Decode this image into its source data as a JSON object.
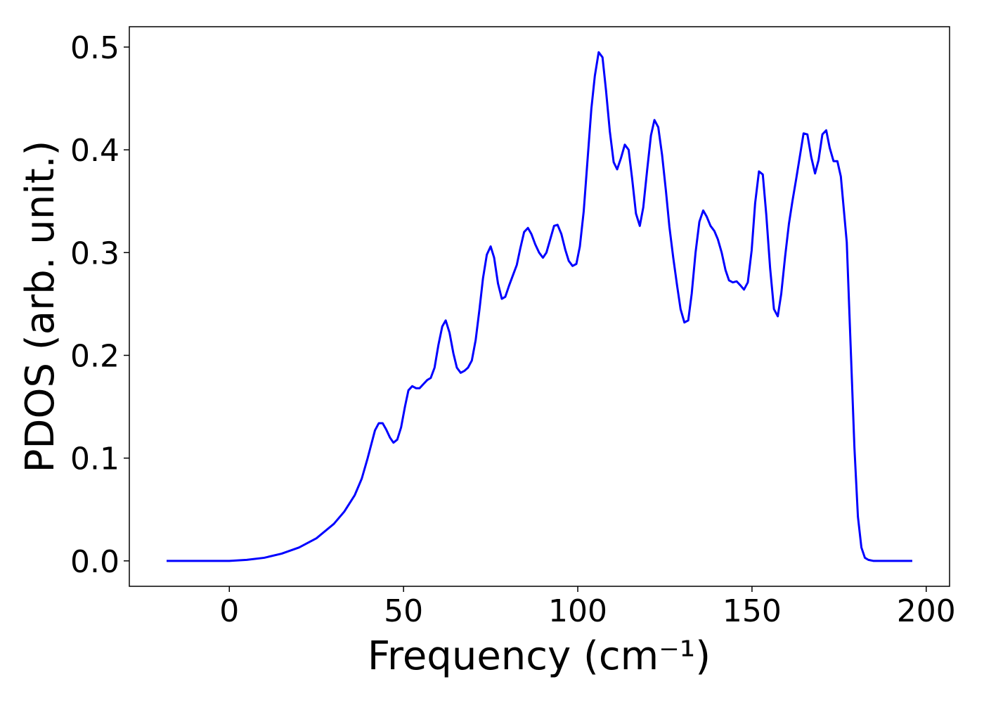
{
  "chart_data": {
    "type": "line",
    "xlabel": "Frequency (cm⁻¹)",
    "ylabel": "PDOS (arb. unit.)",
    "color": "#0000ff",
    "xlim": [
      -28.7,
      206.7
    ],
    "ylim": [
      -0.02475,
      0.5198
    ],
    "xticks": [
      0,
      50,
      100,
      150,
      200
    ],
    "yticks": [
      {
        "value": 0,
        "label": "0.0"
      },
      0.1,
      0.2,
      0.3,
      0.4,
      0.5
    ],
    "x": [
      -18,
      0,
      5,
      10,
      15,
      20,
      25,
      30,
      33,
      36,
      38,
      39.7,
      41.8,
      42.9,
      44.0,
      45.0,
      46.1,
      47.1,
      48.2,
      49.3,
      50.4,
      51.4,
      52.5,
      53.6,
      54.6,
      55.7,
      56.8,
      57.8,
      58.9,
      60.0,
      61.1,
      62.1,
      63.2,
      64.3,
      65.3,
      66.4,
      67.5,
      68.5,
      69.6,
      70.7,
      71.8,
      72.8,
      73.9,
      75.0,
      76.0,
      77.1,
      78.2,
      79.2,
      80.3,
      81.4,
      82.5,
      83.5,
      84.6,
      85.7,
      86.7,
      87.8,
      88.9,
      90.0,
      91.0,
      92.1,
      93.2,
      94.2,
      95.3,
      96.4,
      97.4,
      98.5,
      99.6,
      100.6,
      101.7,
      102.8,
      103.9,
      104.9,
      106.0,
      107.1,
      108.1,
      109.2,
      110.3,
      111.3,
      112.4,
      113.5,
      114.6,
      115.6,
      116.7,
      117.8,
      118.8,
      119.9,
      121.0,
      122.0,
      123.1,
      124.2,
      125.3,
      126.3,
      127.4,
      128.5,
      129.5,
      130.6,
      131.7,
      132.7,
      133.8,
      134.9,
      136.0,
      137.0,
      138.1,
      139.2,
      140.2,
      141.3,
      142.4,
      143.4,
      144.5,
      145.6,
      146.7,
      147.7,
      148.8,
      149.9,
      150.9,
      152.0,
      153.1,
      154.1,
      155.2,
      156.3,
      157.4,
      158.4,
      159.5,
      160.6,
      161.6,
      162.7,
      163.8,
      164.8,
      165.9,
      167.0,
      168.1,
      169.1,
      170.2,
      171.3,
      172.3,
      173.4,
      174.5,
      175.5,
      177.2,
      178.3,
      179.4,
      180.4,
      181.4,
      182.4,
      183.4,
      184.8,
      196
    ],
    "values": [
      0,
      0,
      0.001,
      0.003,
      0.007,
      0.013,
      0.022,
      0.036,
      0.048,
      0.064,
      0.08,
      0.1,
      0.127,
      0.134,
      0.134,
      0.128,
      0.12,
      0.115,
      0.118,
      0.13,
      0.15,
      0.166,
      0.17,
      0.168,
      0.168,
      0.172,
      0.176,
      0.178,
      0.188,
      0.21,
      0.228,
      0.234,
      0.222,
      0.202,
      0.188,
      0.183,
      0.185,
      0.188,
      0.195,
      0.215,
      0.245,
      0.275,
      0.298,
      0.306,
      0.295,
      0.27,
      0.255,
      0.257,
      0.268,
      0.278,
      0.288,
      0.304,
      0.32,
      0.324,
      0.318,
      0.308,
      0.3,
      0.295,
      0.3,
      0.313,
      0.326,
      0.327,
      0.318,
      0.303,
      0.292,
      0.287,
      0.289,
      0.306,
      0.34,
      0.39,
      0.44,
      0.472,
      0.495,
      0.49,
      0.458,
      0.418,
      0.388,
      0.381,
      0.392,
      0.405,
      0.4,
      0.372,
      0.338,
      0.326,
      0.344,
      0.38,
      0.414,
      0.429,
      0.422,
      0.395,
      0.36,
      0.325,
      0.295,
      0.268,
      0.245,
      0.232,
      0.234,
      0.26,
      0.3,
      0.33,
      0.341,
      0.335,
      0.326,
      0.321,
      0.313,
      0.3,
      0.283,
      0.273,
      0.271,
      0.272,
      0.268,
      0.264,
      0.271,
      0.302,
      0.348,
      0.379,
      0.376,
      0.337,
      0.285,
      0.245,
      0.238,
      0.26,
      0.296,
      0.328,
      0.35,
      0.372,
      0.395,
      0.416,
      0.415,
      0.393,
      0.377,
      0.39,
      0.415,
      0.419,
      0.402,
      0.389,
      0.389,
      0.374,
      0.31,
      0.21,
      0.11,
      0.043,
      0.013,
      0.003,
      0.001,
      0,
      0
    ]
  }
}
